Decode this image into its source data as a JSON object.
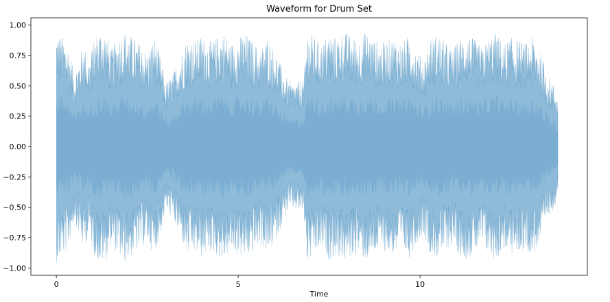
{
  "chart_data": {
    "type": "area",
    "title": "Waveform for Drum Set",
    "xlabel": "Time",
    "ylabel": "",
    "xlim": [
      -0.7,
      14.6
    ],
    "ylim": [
      -1.06,
      1.06
    ],
    "xticks": [
      0,
      5,
      10
    ],
    "yticks": [
      "-1.00",
      "-0.75",
      "-0.50",
      "-0.25",
      "0.00",
      "0.25",
      "0.50",
      "0.75",
      "1.00"
    ],
    "grid": false,
    "legend": "none",
    "duration_seconds": 13.8,
    "series": [
      {
        "color": "#1f77b4",
        "opacity": 0.5,
        "envelope": {
          "x": [
            0,
            0.1,
            0.3,
            0.5,
            0.75,
            0.9,
            1.05,
            1.2,
            1.35,
            1.5,
            1.7,
            1.9,
            2.1,
            2.3,
            2.5,
            2.7,
            2.85,
            3.0,
            3.2,
            3.4,
            3.6,
            3.8,
            4.0,
            4.2,
            4.4,
            4.6,
            4.8,
            5.0,
            5.2,
            5.4,
            5.6,
            5.8,
            6.0,
            6.2,
            6.35,
            6.5,
            6.8,
            6.9,
            7.1,
            7.3,
            7.5,
            7.7,
            7.9,
            8.1,
            8.3,
            8.5,
            8.7,
            8.9,
            9.1,
            9.3,
            9.5,
            9.7,
            9.9,
            10.1,
            10.3,
            10.5,
            10.7,
            10.9,
            11.1,
            11.3,
            11.5,
            11.7,
            11.9,
            12.1,
            12.3,
            12.5,
            12.7,
            12.9,
            13.1,
            13.3,
            13.5,
            13.7,
            13.8
          ],
          "peak": [
            0.96,
            0.93,
            0.86,
            0.6,
            0.85,
            0.72,
            0.9,
            0.97,
            0.95,
            0.8,
            0.9,
            0.96,
            0.9,
            0.85,
            0.78,
            0.9,
            0.75,
            0.52,
            0.6,
            0.75,
            0.9,
            0.88,
            0.92,
            0.86,
            0.9,
            0.95,
            0.85,
            0.9,
            0.93,
            0.88,
            0.8,
            0.9,
            0.8,
            0.65,
            0.55,
            0.52,
            0.55,
            0.96,
            0.9,
            0.85,
            0.94,
            0.9,
            0.95,
            0.92,
            0.88,
            0.95,
            0.9,
            0.85,
            0.88,
            0.9,
            0.85,
            0.92,
            0.8,
            0.72,
            0.9,
            0.93,
            0.86,
            0.8,
            0.9,
            0.93,
            0.88,
            0.82,
            0.9,
            0.94,
            0.85,
            0.9,
            0.88,
            0.85,
            0.9,
            0.8,
            0.6,
            0.5,
            0.38
          ]
        }
      }
    ]
  }
}
